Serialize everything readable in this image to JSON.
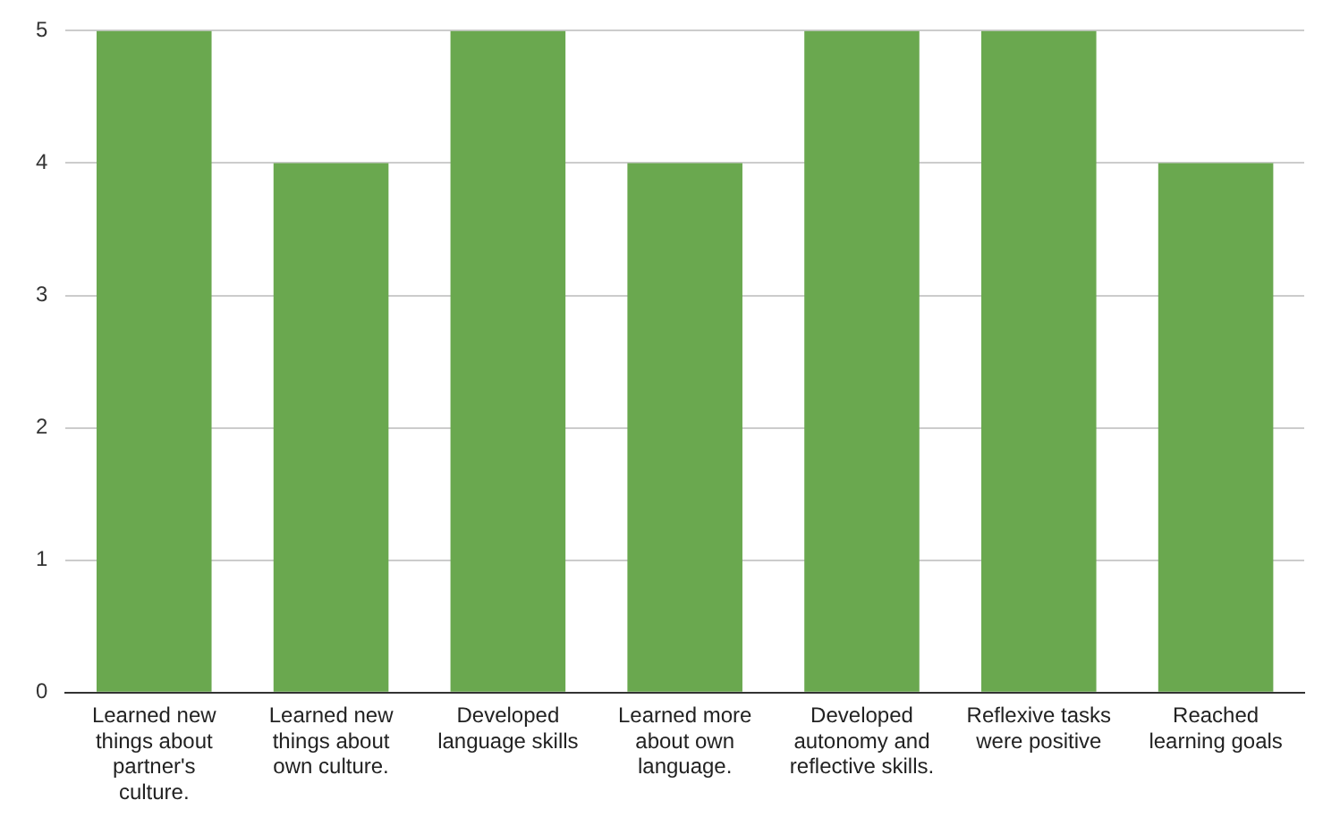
{
  "chart_data": {
    "type": "bar",
    "categories": [
      "Learned new things about partner's culture.",
      "Learned new things about own culture.",
      "Developed language skills",
      "Learned more about own language.",
      "Developed autonomy and reflective skills.",
      "Reflexive tasks were positive",
      "Reached learning goals"
    ],
    "values": [
      5,
      4,
      5,
      4,
      5,
      5,
      4
    ],
    "color": "#6aa84f",
    "ylim": [
      0,
      5
    ],
    "yticks": [
      0,
      1,
      2,
      3,
      4,
      5
    ],
    "grid": "y",
    "legend": false
  }
}
